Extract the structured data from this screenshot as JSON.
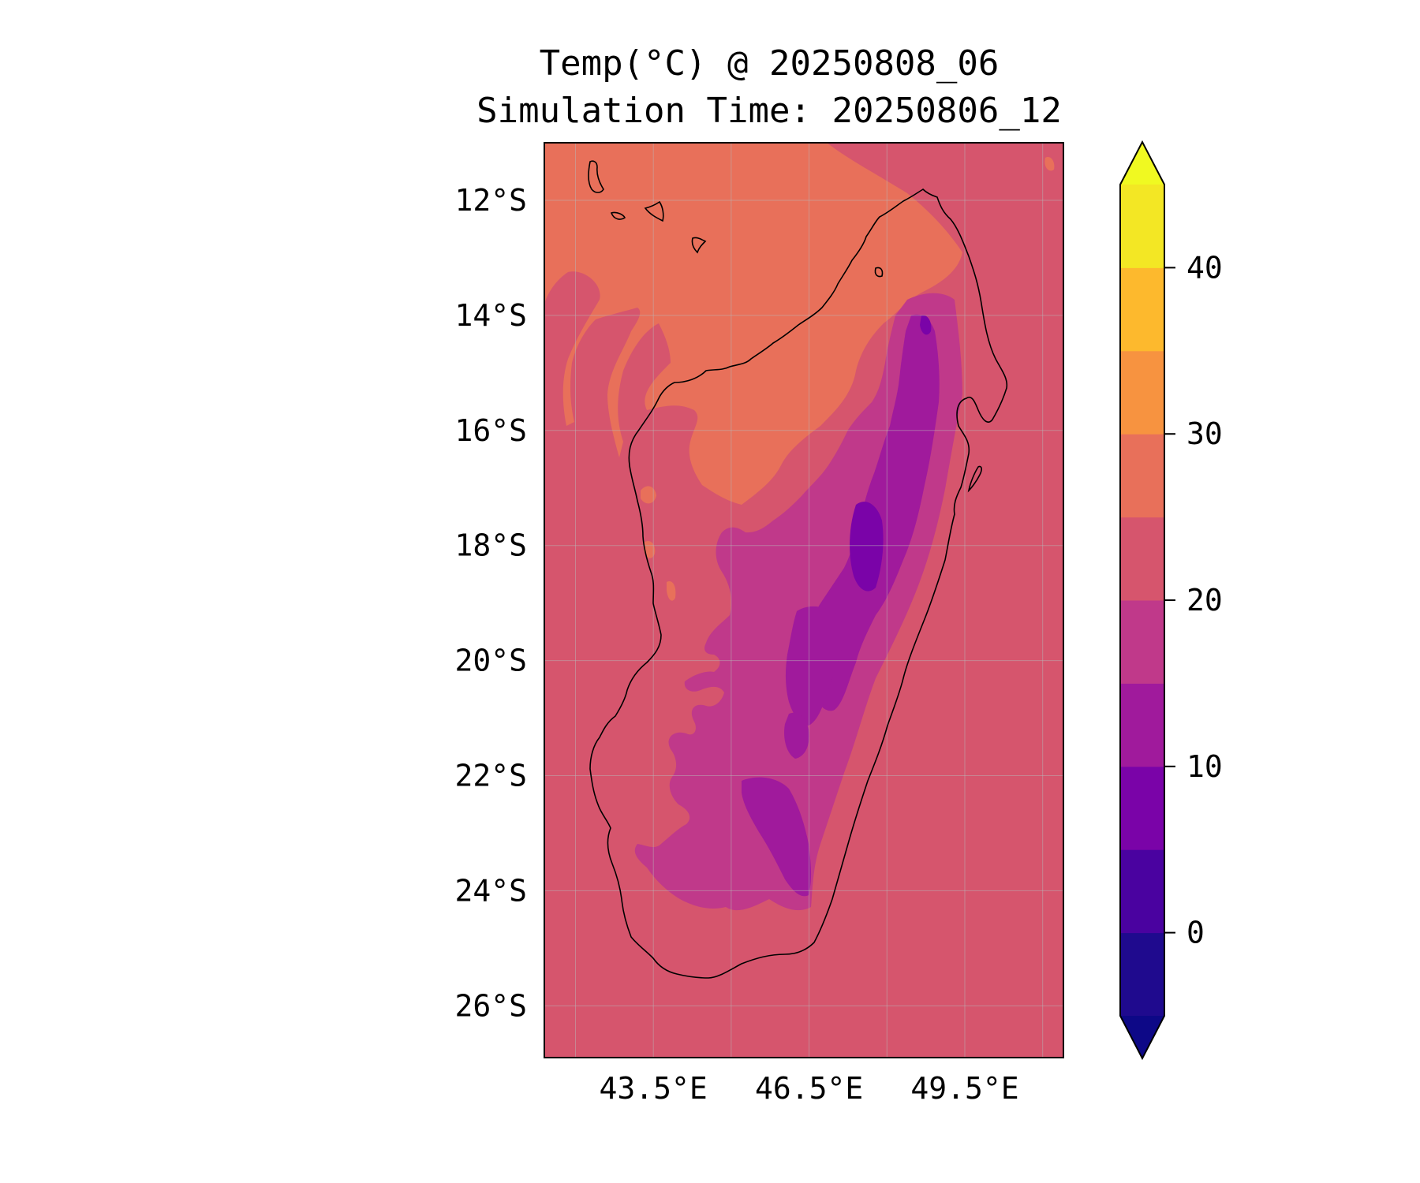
{
  "title": {
    "line1": "Temp(°C) @ 20250808_06",
    "line2": "Simulation Time: 20250806_12"
  },
  "map": {
    "lon_range": [
      41.4,
      51.4
    ],
    "lat_range": [
      -26.9,
      -11.0
    ],
    "x_ticks": [
      {
        "value": 43.5,
        "label": "43.5°E"
      },
      {
        "value": 46.5,
        "label": "46.5°E"
      },
      {
        "value": 49.5,
        "label": "49.5°E"
      }
    ],
    "y_ticks": [
      {
        "value": -12,
        "label": "12°S"
      },
      {
        "value": -14,
        "label": "14°S"
      },
      {
        "value": -16,
        "label": "16°S"
      },
      {
        "value": -18,
        "label": "18°S"
      },
      {
        "value": -20,
        "label": "20°S"
      },
      {
        "value": -22,
        "label": "22°S"
      },
      {
        "value": -24,
        "label": "24°S"
      },
      {
        "value": -26,
        "label": "26°S"
      }
    ],
    "gridlines": true,
    "background_level_color": "#d6556d"
  },
  "colorbar": {
    "bounds": [
      -5,
      0,
      5,
      10,
      15,
      20,
      25,
      30,
      35,
      40,
      45
    ],
    "colors": [
      "#1f0a8e",
      "#4a02a0",
      "#7a03a8",
      "#a01a9c",
      "#c0398a",
      "#d6556d",
      "#e8705a",
      "#f79340",
      "#fdb92d",
      "#f3e724"
    ],
    "under_color": "#0d0887",
    "over_color": "#f0f921",
    "extend": "both",
    "ticks": [
      {
        "value": 0,
        "label": "0"
      },
      {
        "value": 10,
        "label": "10"
      },
      {
        "value": 20,
        "label": "20"
      },
      {
        "value": 30,
        "label": "30"
      },
      {
        "value": 40,
        "label": "40"
      }
    ]
  }
}
